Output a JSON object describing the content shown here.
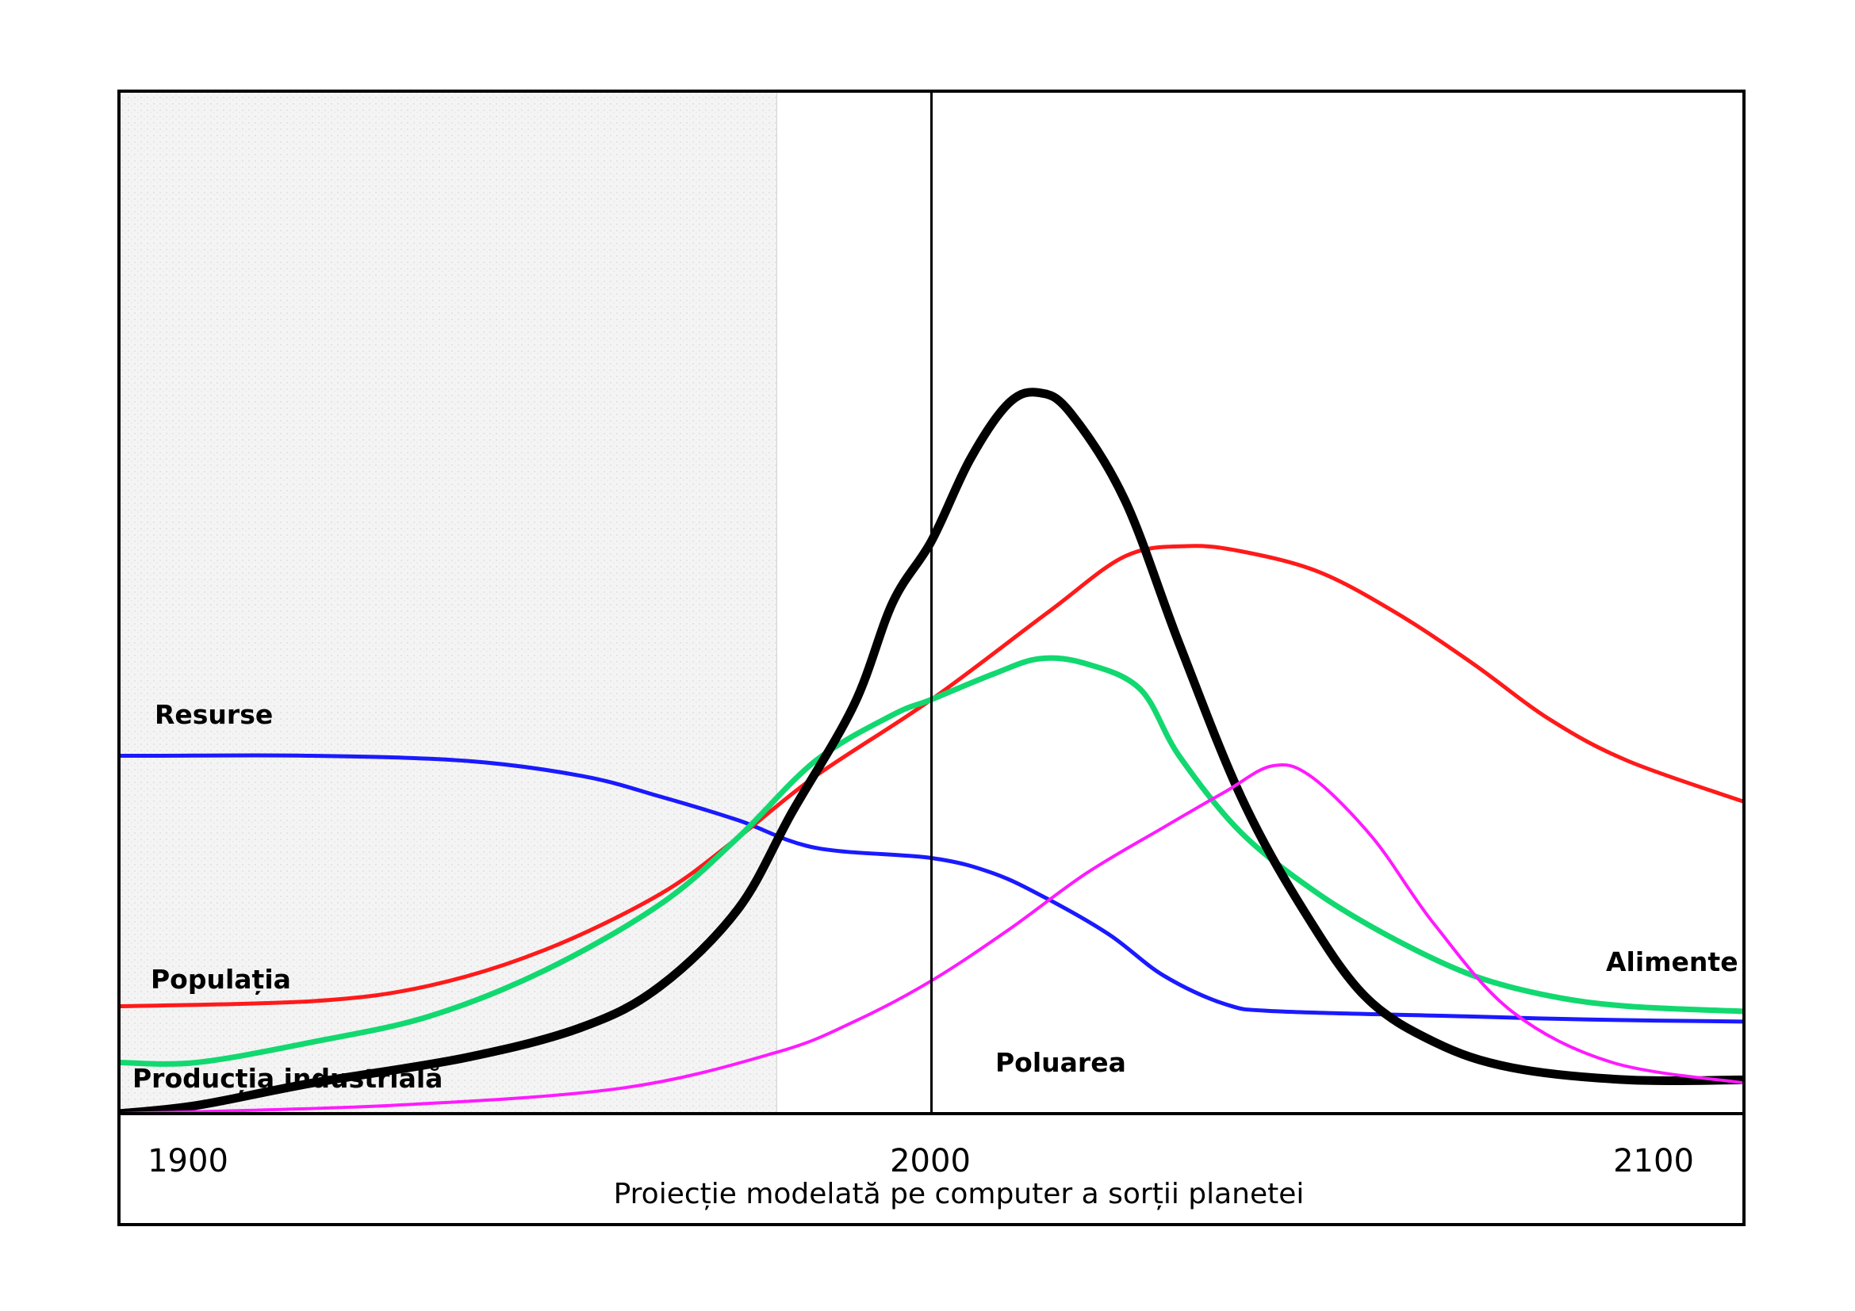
{
  "chart_data": {
    "type": "line",
    "title": "Proiecție modelată pe computer a sorții planetei",
    "xlabel": "",
    "ylabel": "",
    "xlim": [
      1895,
      2105
    ],
    "ylim": [
      0,
      100
    ],
    "x_ticks": [
      "1900",
      "2000",
      "2100"
    ],
    "shaded_region": {
      "from": 1895,
      "to": 1980
    },
    "reference_line_x": 2000,
    "grid": false,
    "series": [
      {
        "name": "Resurse",
        "color": "#1a1aff",
        "stroke": 5,
        "points": [
          [
            1895,
            35
          ],
          [
            1900,
            35
          ],
          [
            1920,
            35
          ],
          [
            1940,
            34.5
          ],
          [
            1955,
            33
          ],
          [
            1965,
            31
          ],
          [
            1975,
            28.7
          ],
          [
            1985,
            26
          ],
          [
            2000,
            25
          ],
          [
            2008,
            23.5
          ],
          [
            2015,
            21
          ],
          [
            2023,
            17.5
          ],
          [
            2030,
            13.5
          ],
          [
            2038,
            10.7
          ],
          [
            2045,
            10
          ],
          [
            2070,
            9.5
          ],
          [
            2085,
            9.2
          ],
          [
            2105,
            9
          ]
        ]
      },
      {
        "name": "Populația",
        "color": "#ff1a1a",
        "stroke": 5,
        "points": [
          [
            1895,
            10.5
          ],
          [
            1920,
            11
          ],
          [
            1935,
            12.5
          ],
          [
            1950,
            16
          ],
          [
            1965,
            21.5
          ],
          [
            1975,
            27
          ],
          [
            1985,
            33
          ],
          [
            2000,
            40.5
          ],
          [
            2015,
            49
          ],
          [
            2025,
            54.5
          ],
          [
            2033,
            55.5
          ],
          [
            2040,
            55
          ],
          [
            2050,
            53
          ],
          [
            2060,
            49
          ],
          [
            2070,
            44
          ],
          [
            2080,
            38.5
          ],
          [
            2090,
            34.5
          ],
          [
            2105,
            30.5
          ]
        ]
      },
      {
        "name": "Alimente",
        "color": "#12d870",
        "stroke": 7,
        "points": [
          [
            1895,
            5
          ],
          [
            1905,
            5
          ],
          [
            1920,
            7
          ],
          [
            1935,
            9.5
          ],
          [
            1950,
            14
          ],
          [
            1965,
            20.5
          ],
          [
            1975,
            27
          ],
          [
            1985,
            34.5
          ],
          [
            1995,
            39
          ],
          [
            2000,
            40.5
          ],
          [
            2008,
            43
          ],
          [
            2014,
            44.5
          ],
          [
            2020,
            44
          ],
          [
            2027,
            41.5
          ],
          [
            2032,
            35
          ],
          [
            2040,
            27.5
          ],
          [
            2050,
            21.5
          ],
          [
            2060,
            17
          ],
          [
            2070,
            13.5
          ],
          [
            2080,
            11.5
          ],
          [
            2090,
            10.5
          ],
          [
            2105,
            10
          ]
        ]
      },
      {
        "name": "Producția industrială",
        "color": "#000000",
        "stroke": 11,
        "points": [
          [
            1895,
            0
          ],
          [
            1905,
            0.8
          ],
          [
            1920,
            3
          ],
          [
            1940,
            5.5
          ],
          [
            1955,
            8.5
          ],
          [
            1965,
            12.5
          ],
          [
            1975,
            20
          ],
          [
            1982,
            29.5
          ],
          [
            1990,
            40
          ],
          [
            1995,
            50
          ],
          [
            2000,
            56
          ],
          [
            2005,
            64
          ],
          [
            2010,
            69.5
          ],
          [
            2014,
            70.5
          ],
          [
            2018,
            68.5
          ],
          [
            2025,
            60
          ],
          [
            2032,
            46
          ],
          [
            2040,
            31
          ],
          [
            2048,
            20
          ],
          [
            2056,
            11.5
          ],
          [
            2065,
            7
          ],
          [
            2075,
            4.5
          ],
          [
            2090,
            3.3
          ],
          [
            2105,
            3.3
          ]
        ]
      },
      {
        "name": "Poluarea",
        "color": "#ff1aff",
        "stroke": 4,
        "points": [
          [
            1895,
            0
          ],
          [
            1930,
            0.8
          ],
          [
            1960,
            2.5
          ],
          [
            1980,
            6
          ],
          [
            1990,
            9
          ],
          [
            2000,
            13
          ],
          [
            2010,
            18
          ],
          [
            2020,
            23.5
          ],
          [
            2030,
            28
          ],
          [
            2038,
            31.5
          ],
          [
            2044,
            34
          ],
          [
            2049,
            33
          ],
          [
            2057,
            27
          ],
          [
            2065,
            18.5
          ],
          [
            2075,
            10
          ],
          [
            2088,
            5
          ],
          [
            2105,
            3
          ]
        ]
      }
    ],
    "labels": {
      "Resurse": "Resurse",
      "Populația": "Populația",
      "Alimente": "Alimente",
      "Producția industrială": "Producția industrială",
      "Poluarea": "Poluarea"
    }
  }
}
